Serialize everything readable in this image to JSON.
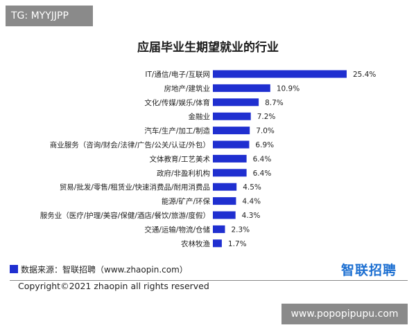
{
  "watermarks": {
    "top": "TG: MYYJJPP",
    "bottom": "www.popopipupu.com"
  },
  "chart_data": {
    "type": "bar",
    "orientation": "horizontal",
    "title": "应届毕业生期望就业的行业",
    "bar_color": "#1f2fd0",
    "xlim": [
      0,
      25.4
    ],
    "grid": false,
    "categories": [
      "IT/通信/电子/互联网",
      "房地产/建筑业",
      "文化/传媒/娱乐/体育",
      "金融业",
      "汽车/生产/加工/制造",
      "商业服务（咨询/财会/法律/广告/公关/认证/外包）",
      "文体教育/工艺美术",
      "政府/非盈利机构",
      "贸易/批发/零售/租赁业/快速消费品/耐用消费品",
      "能源/矿产/环保",
      "服务业（医疗/护理/美容/保健/酒店/餐饮/旅游/度假）",
      "交通/运输/物流/仓储",
      "农林牧渔"
    ],
    "values": [
      25.4,
      10.9,
      8.7,
      7.2,
      7.0,
      6.9,
      6.4,
      6.4,
      4.5,
      4.4,
      4.3,
      2.3,
      1.7
    ],
    "value_labels": [
      "25.4%",
      "10.9%",
      "8.7%",
      "7.2%",
      "7.0%",
      "6.9%",
      "6.4%",
      "6.4%",
      "4.5%",
      "4.4%",
      "4.3%",
      "2.3%",
      "1.7%"
    ]
  },
  "footer": {
    "source": "数据来源：智联招聘（www.zhaopin.com）",
    "logo_text": "智联招聘",
    "copyright": "Copyright©2021 zhaopin all rights reserved"
  }
}
